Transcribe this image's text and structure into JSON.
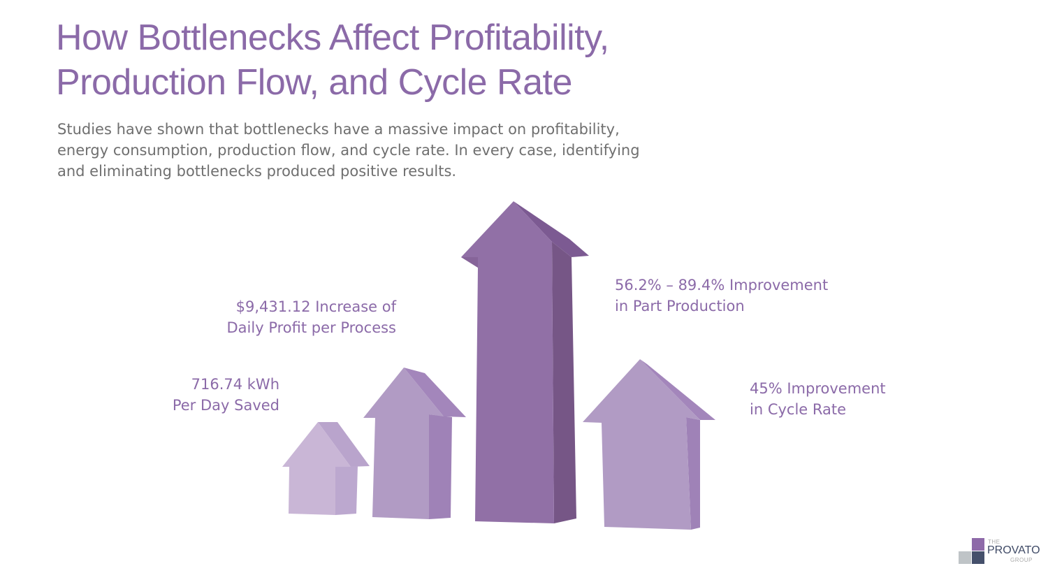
{
  "title": {
    "line1": "How Bottlenecks Affect Profitability,",
    "line2": "Production Flow, and Cycle Rate"
  },
  "intro": {
    "line1": "Studies have shown that bottlenecks have a massive impact on profitability,",
    "line2": "energy consumption, production flow, and cycle rate. In every case, identifying",
    "line3": "and eliminating bottlenecks produced positive results."
  },
  "stats": {
    "profit": {
      "line1": "$9,431.12 Increase of",
      "line2": "Daily Profit per Process"
    },
    "energy": {
      "line1": "716.74 kWh",
      "line2": "Per Day Saved"
    },
    "production": {
      "line1": "56.2% – 89.4% Improvement",
      "line2": "in Part Production"
    },
    "cycle": {
      "line1": "45% Improvement",
      "line2": "in Cycle Rate"
    }
  },
  "colors": {
    "title": "#8b6aa8",
    "body_text": "#6f6f6f",
    "arrow_light": "#c9b6d6",
    "arrow_medium": "#b19bc4",
    "arrow_dark": "#9170a6"
  },
  "logo": {
    "the": "THE",
    "name": "PROVATO",
    "group": "GROUP",
    "colors": [
      "#8e6aa9",
      "#bfc4c7",
      "#45506b"
    ]
  }
}
